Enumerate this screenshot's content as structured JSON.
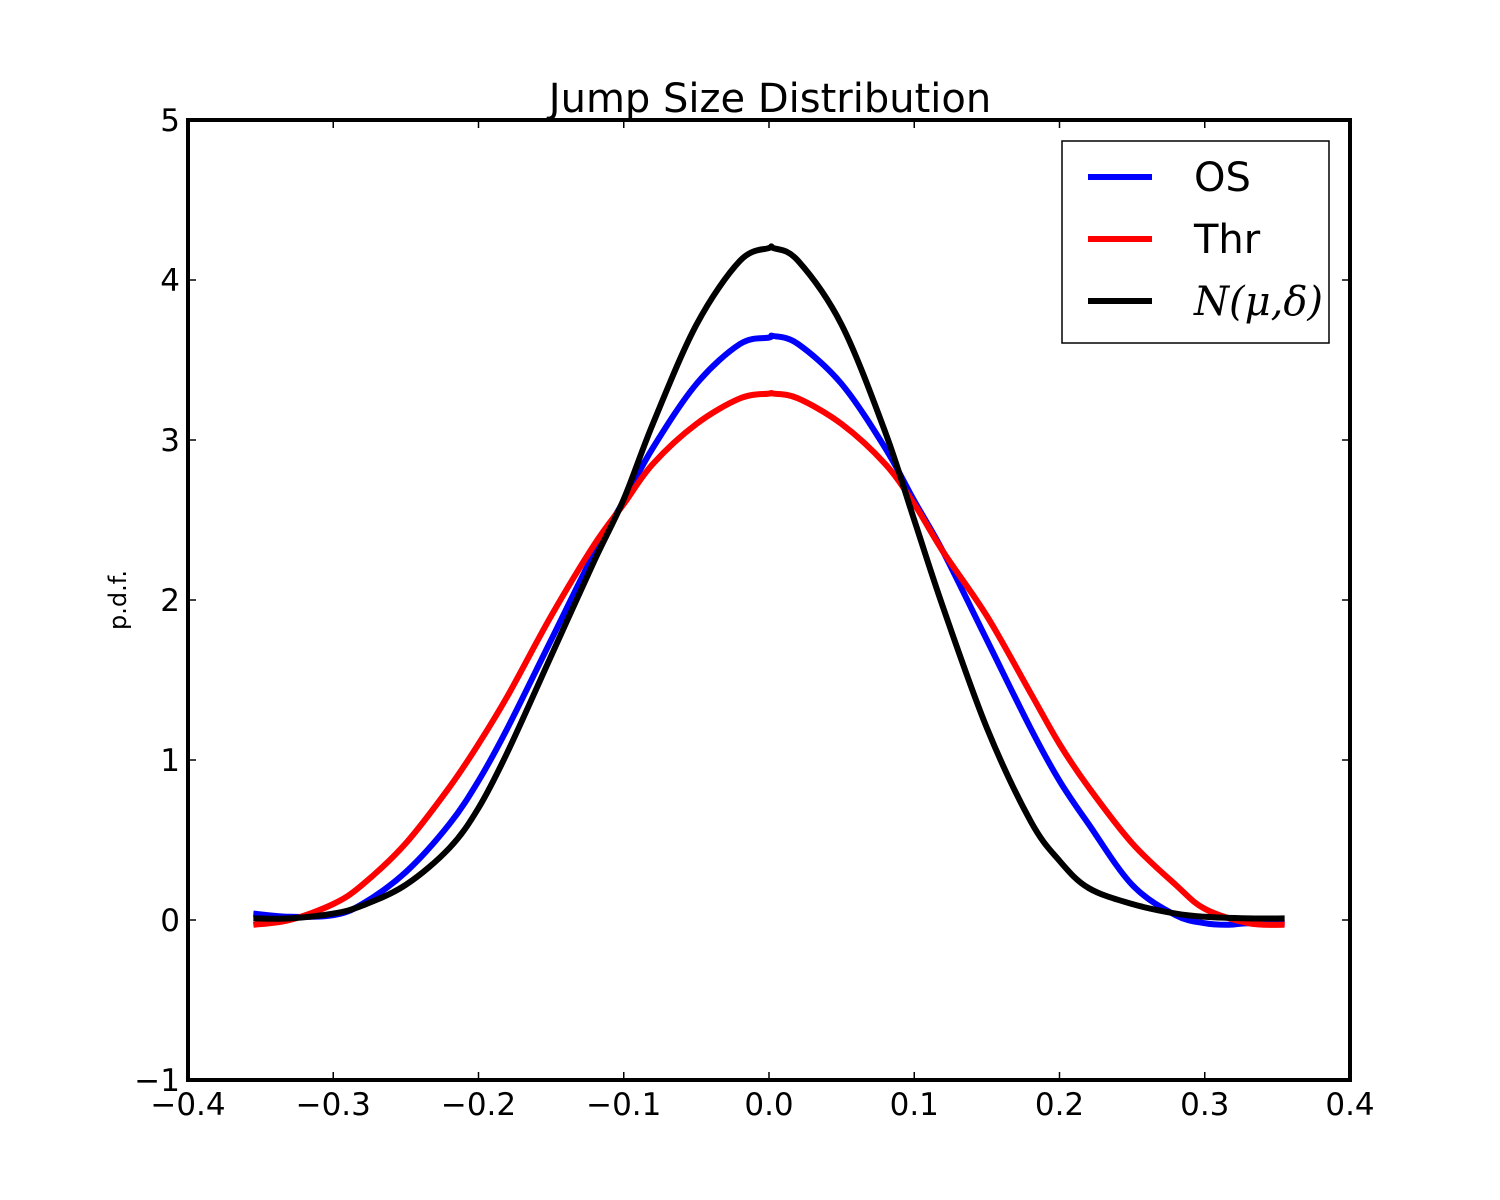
{
  "chart_data": {
    "type": "line",
    "title": "Jump Size Distribution",
    "xlabel": "",
    "ylabel": "p.d.f.",
    "xlim": [
      -0.4,
      0.4
    ],
    "ylim": [
      -1,
      5
    ],
    "grid": false,
    "legend_position": "top-right",
    "x_ticks": [
      -0.4,
      -0.3,
      -0.2,
      -0.1,
      0.0,
      0.1,
      0.2,
      0.3,
      0.4
    ],
    "x_tick_labels": [
      "−0.4",
      "−0.3",
      "−0.2",
      "−0.1",
      "0.0",
      "0.1",
      "0.2",
      "0.3",
      "0.4"
    ],
    "y_ticks": [
      -1,
      0,
      1,
      2,
      3,
      4,
      5
    ],
    "y_tick_labels": [
      "−1",
      "0",
      "1",
      "2",
      "3",
      "4",
      "5"
    ],
    "series": [
      {
        "name": "OS",
        "color": "#0000ff",
        "x": [
          -0.355,
          -0.33,
          -0.3,
          -0.28,
          -0.25,
          -0.22,
          -0.2,
          -0.18,
          -0.15,
          -0.12,
          -0.1,
          -0.08,
          -0.05,
          -0.02,
          0.0,
          0.003,
          0.02,
          0.05,
          0.08,
          0.1,
          0.12,
          0.15,
          0.18,
          0.2,
          0.22,
          0.25,
          0.28,
          0.3,
          0.315,
          0.33,
          0.355
        ],
        "y": [
          0.04,
          0.02,
          0.03,
          0.1,
          0.3,
          0.6,
          0.87,
          1.2,
          1.75,
          2.3,
          2.62,
          2.95,
          3.35,
          3.6,
          3.64,
          3.65,
          3.6,
          3.35,
          2.95,
          2.62,
          2.3,
          1.75,
          1.2,
          0.87,
          0.6,
          0.22,
          0.03,
          -0.02,
          -0.03,
          -0.02,
          -0.02
        ]
      },
      {
        "name": "Thr",
        "color": "#ff0000",
        "x": [
          -0.355,
          -0.33,
          -0.3,
          -0.28,
          -0.25,
          -0.22,
          -0.2,
          -0.18,
          -0.15,
          -0.12,
          -0.1,
          -0.08,
          -0.05,
          -0.02,
          0.0,
          0.003,
          0.02,
          0.05,
          0.08,
          0.1,
          0.12,
          0.15,
          0.18,
          0.2,
          0.22,
          0.25,
          0.28,
          0.3,
          0.33,
          0.355
        ],
        "y": [
          -0.03,
          0.0,
          0.1,
          0.22,
          0.48,
          0.83,
          1.1,
          1.4,
          1.9,
          2.35,
          2.6,
          2.85,
          3.1,
          3.26,
          3.29,
          3.29,
          3.26,
          3.1,
          2.85,
          2.6,
          2.3,
          1.9,
          1.42,
          1.1,
          0.83,
          0.48,
          0.22,
          0.07,
          -0.02,
          -0.03
        ]
      },
      {
        "name": "N(μ,δ)",
        "color": "#000000",
        "x": [
          -0.355,
          -0.33,
          -0.3,
          -0.28,
          -0.25,
          -0.22,
          -0.2,
          -0.18,
          -0.15,
          -0.12,
          -0.1,
          -0.08,
          -0.05,
          -0.02,
          0.0,
          0.003,
          0.02,
          0.05,
          0.08,
          0.1,
          0.12,
          0.15,
          0.18,
          0.2,
          0.22,
          0.25,
          0.28,
          0.3,
          0.33,
          0.355
        ],
        "y": [
          0.01,
          0.01,
          0.04,
          0.09,
          0.22,
          0.45,
          0.7,
          1.05,
          1.65,
          2.25,
          2.63,
          3.1,
          3.72,
          4.12,
          4.2,
          4.2,
          4.12,
          3.72,
          3.05,
          2.5,
          1.95,
          1.2,
          0.62,
          0.37,
          0.2,
          0.1,
          0.04,
          0.02,
          0.01,
          0.01
        ]
      }
    ]
  }
}
